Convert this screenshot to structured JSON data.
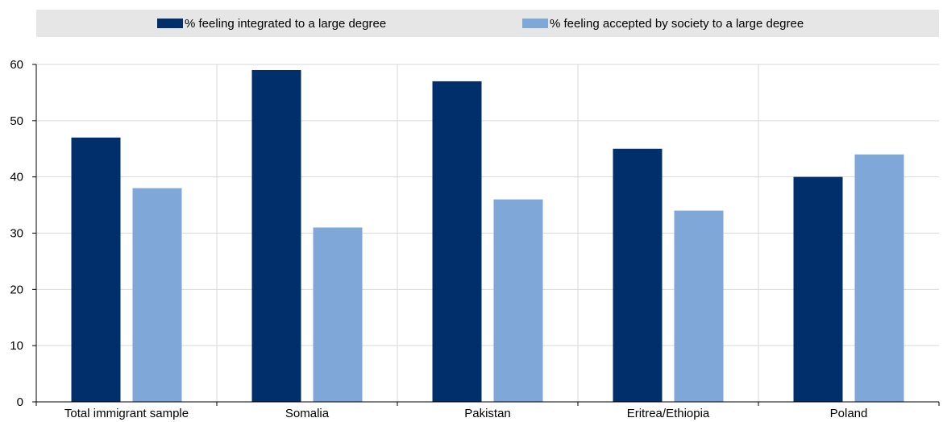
{
  "chart_data": {
    "type": "bar",
    "categories": [
      "Total immigrant sample",
      "Somalia",
      "Pakistan",
      "Eritrea/Ethiopia",
      "Poland"
    ],
    "series": [
      {
        "name": "% feeling integrated to a large degree",
        "color": "#002f6c",
        "values": [
          47,
          59,
          57,
          45,
          40
        ]
      },
      {
        "name": "% feeling accepted by society to a large degree",
        "color": "#7fa8d9",
        "values": [
          38,
          31,
          36,
          34,
          44
        ]
      }
    ],
    "ylim": [
      0,
      60
    ],
    "yticks": [
      0,
      10,
      20,
      30,
      40,
      50,
      60
    ],
    "grid": true,
    "legend_position": "top"
  }
}
